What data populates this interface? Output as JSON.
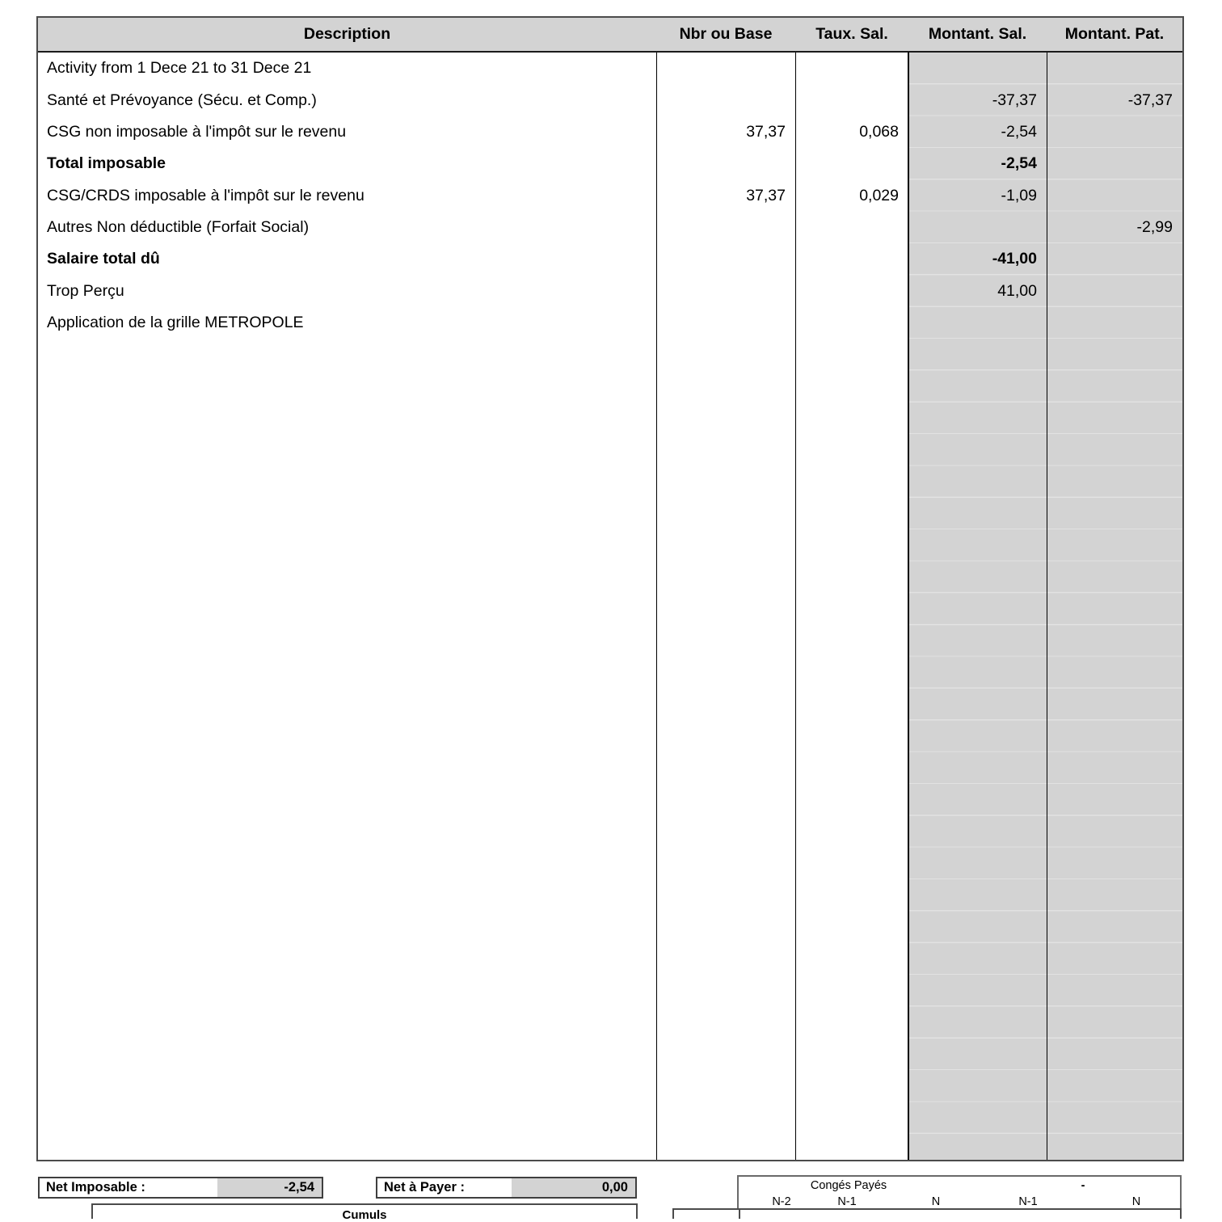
{
  "colors": {
    "header_bg": "#d3d3d3",
    "amount_column_bg": "#d3d3d3",
    "value_field_bg": "#d3d3d3",
    "border": "#4b4b4b"
  },
  "table": {
    "columns": [
      "Description",
      "Nbr ou Base",
      "Taux. Sal.",
      "Montant. Sal.",
      "Montant. Pat."
    ],
    "rows": [
      {
        "description": "Activity from 1 Dece 21 to 31 Dece 21",
        "base": "",
        "taux": "",
        "montant_sal": "",
        "montant_pat": "",
        "bold": false
      },
      {
        "description": "Santé et Prévoyance (Sécu. et Comp.)",
        "base": "",
        "taux": "",
        "montant_sal": "-37,37",
        "montant_pat": "-37,37",
        "bold": false
      },
      {
        "description": "CSG non imposable à l'impôt sur le revenu",
        "base": "37,37",
        "taux": "0,068",
        "montant_sal": "-2,54",
        "montant_pat": "",
        "bold": false
      },
      {
        "description": "Total imposable",
        "base": "",
        "taux": "",
        "montant_sal": "-2,54",
        "montant_pat": "",
        "bold": true
      },
      {
        "description": "CSG/CRDS imposable à l'impôt sur le revenu",
        "base": "37,37",
        "taux": "0,029",
        "montant_sal": "-1,09",
        "montant_pat": "",
        "bold": false
      },
      {
        "description": "Autres Non déductible (Forfait Social)",
        "base": "",
        "taux": "",
        "montant_sal": "",
        "montant_pat": "-2,99",
        "bold": false
      },
      {
        "description": "Salaire total dû",
        "base": "",
        "taux": "",
        "montant_sal": "-41,00",
        "montant_pat": "",
        "bold": true
      },
      {
        "description": "Trop Perçu",
        "base": "",
        "taux": "",
        "montant_sal": "41,00",
        "montant_pat": "",
        "bold": false
      },
      {
        "description": "Application de la grille METROPOLE",
        "base": "",
        "taux": "",
        "montant_sal": "",
        "montant_pat": "",
        "bold": false
      }
    ]
  },
  "summary": {
    "net_imposable_label": "Net Imposable :",
    "net_imposable_value": "-2,54",
    "net_a_payer_label": "Net à Payer :",
    "net_a_payer_value": "0,00",
    "cumuls_title": "Cumuls"
  },
  "conges_payes": {
    "title": "Congés Payés",
    "spacer": "-",
    "period_labels": [
      "N-2",
      "N-1",
      "N",
      "N-1",
      "N"
    ]
  }
}
